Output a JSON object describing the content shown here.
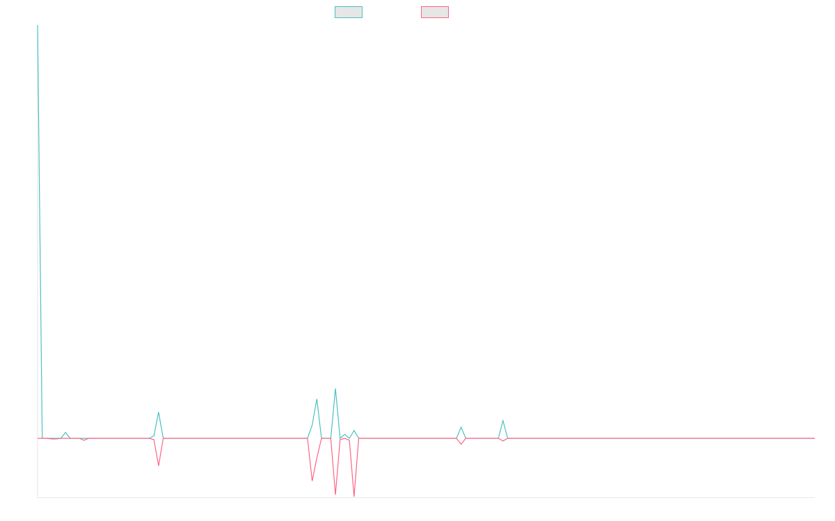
{
  "chart_data": {
    "type": "line",
    "title": "",
    "xlabel": "",
    "ylabel": "",
    "legend": "top-center",
    "grid": false,
    "ylim": [
      -90,
      630
    ],
    "series": [
      {
        "color": "#4BC0C0",
        "values": [
          630,
          0,
          0,
          0,
          0,
          0,
          9,
          0,
          0,
          0,
          0,
          0,
          0,
          0,
          0,
          0,
          0,
          0,
          0,
          0,
          0,
          0,
          0,
          0,
          0,
          4,
          40,
          0,
          0,
          0,
          0,
          0,
          0,
          0,
          0,
          0,
          0,
          0,
          0,
          0,
          0,
          0,
          0,
          0,
          0,
          0,
          0,
          0,
          0,
          0,
          0,
          0,
          0,
          0,
          0,
          0,
          0,
          0,
          0,
          20,
          60,
          0,
          0,
          0,
          76,
          0,
          6,
          0,
          12,
          0,
          0,
          0,
          0,
          0,
          0,
          0,
          0,
          0,
          0,
          0,
          0,
          0,
          0,
          0,
          0,
          0,
          0,
          0,
          0,
          0,
          0,
          17,
          0,
          0,
          0,
          0,
          0,
          0,
          0,
          0,
          27,
          0,
          0,
          0,
          0,
          0,
          0,
          0,
          0,
          0,
          0,
          0,
          0,
          0,
          0,
          0,
          0,
          0,
          0,
          0,
          0,
          0,
          0,
          0,
          0,
          0,
          0,
          0,
          0,
          0,
          0,
          0,
          0,
          0,
          0,
          0,
          0,
          0,
          0,
          0,
          0,
          0,
          0,
          0,
          0,
          0,
          0,
          0,
          0,
          0,
          0,
          0,
          0,
          0,
          0,
          0,
          0,
          0,
          0,
          0,
          0,
          0,
          0,
          0,
          0,
          0,
          0,
          0
        ]
      },
      {
        "color": "#FF6384",
        "values": [
          0,
          0,
          0,
          -1,
          -1,
          0,
          0,
          0,
          0,
          0,
          -3,
          0,
          0,
          0,
          0,
          0,
          0,
          0,
          0,
          0,
          0,
          0,
          0,
          0,
          0,
          -2,
          -42,
          0,
          0,
          0,
          0,
          0,
          0,
          0,
          0,
          0,
          0,
          0,
          0,
          0,
          0,
          0,
          0,
          0,
          0,
          0,
          0,
          0,
          0,
          0,
          0,
          0,
          0,
          0,
          0,
          0,
          0,
          0,
          0,
          -65,
          -30,
          0,
          0,
          0,
          -86,
          -2,
          0,
          -3,
          -89,
          0,
          0,
          0,
          0,
          0,
          0,
          0,
          0,
          0,
          0,
          0,
          0,
          0,
          0,
          0,
          0,
          0,
          0,
          0,
          0,
          0,
          0,
          -9,
          0,
          0,
          0,
          0,
          0,
          0,
          0,
          0,
          -4,
          0,
          0,
          0,
          0,
          0,
          0,
          0,
          0,
          0,
          0,
          0,
          0,
          0,
          0,
          0,
          0,
          0,
          0,
          0,
          0,
          0,
          0,
          0,
          0,
          0,
          0,
          0,
          0,
          0,
          0,
          0,
          0,
          0,
          0,
          0,
          0,
          0,
          0,
          0,
          0,
          0,
          0,
          0,
          0,
          0,
          0,
          0,
          0,
          0,
          0,
          0,
          0,
          0,
          0,
          0,
          0,
          0,
          0,
          0,
          0,
          0,
          0,
          0,
          0,
          0,
          0,
          0
        ]
      }
    ]
  }
}
